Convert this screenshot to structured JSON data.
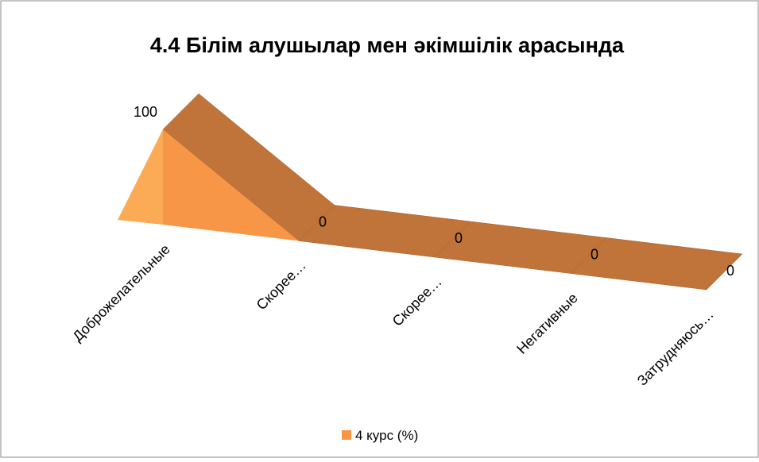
{
  "chart_data": {
    "type": "area3d",
    "title": "4.4 Білім алушылар мен әкімшілік арасында",
    "categories": [
      "Доброжелательные",
      "Скорее…",
      "Скорее…",
      "Негативные",
      "Затрудняюсь…"
    ],
    "series": [
      {
        "name": "4 курс (%)",
        "color": "#f79646",
        "values": [
          100,
          0,
          0,
          0,
          0
        ]
      }
    ],
    "legend": "bottom"
  }
}
